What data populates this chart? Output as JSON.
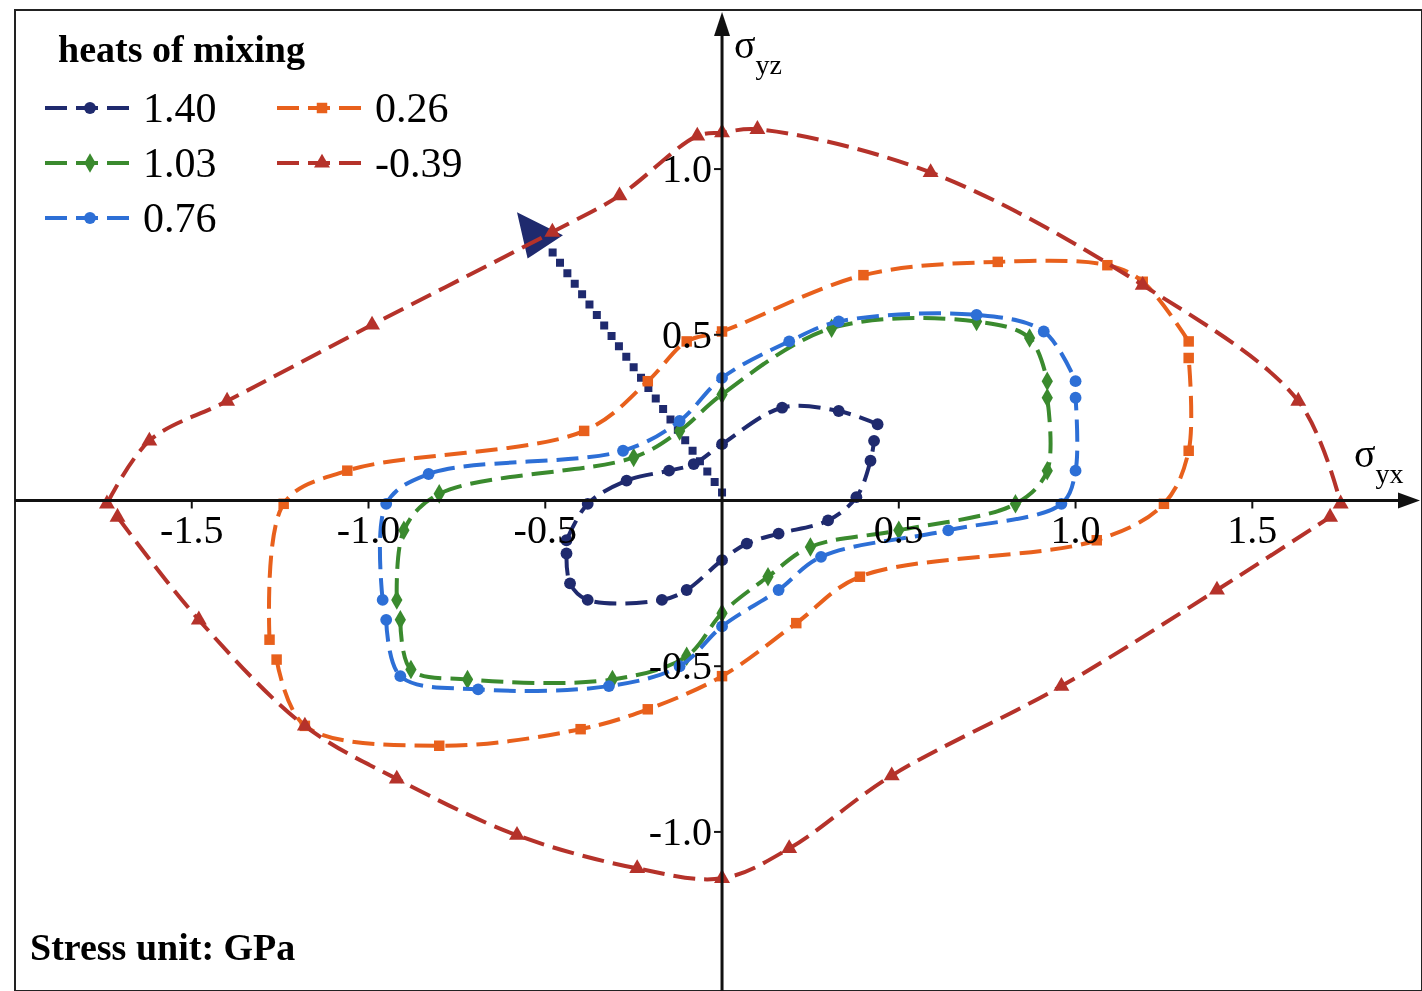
{
  "chart_data": {
    "type": "line",
    "xlabel": "σ$_{yx}$",
    "ylabel": "σ$_{yz}$",
    "legend_title": "heats of mixing",
    "legend": "top left",
    "line_style": "dashed",
    "xlim": [
      -2.0,
      1.98
    ],
    "ylim": [
      -1.48,
      1.48
    ],
    "xticks": [
      {
        "value": -1.5,
        "label": "-1.5"
      },
      {
        "value": -1,
        "label": "-1.0"
      },
      {
        "value": -0.5,
        "label": "-0.5"
      },
      {
        "value": 0.5,
        "label": "0.5"
      },
      {
        "value": 1,
        "label": "1.0"
      },
      {
        "value": 1.5,
        "label": "1.5"
      }
    ],
    "yticks": [
      {
        "value": 1,
        "label": "1.0"
      },
      {
        "value": 0.5,
        "label": "0.5"
      },
      {
        "value": -0.5,
        "label": "-0.5"
      },
      {
        "value": -1,
        "label": "-1.0"
      }
    ],
    "annotations": [
      "Stress unit: GPa"
    ],
    "series": [
      {
        "name": "1.40",
        "color": "#1f2a6e",
        "marker": "circle",
        "x": [
          -0.44,
          -0.38,
          -0.27,
          -0.15,
          -0.08,
          0,
          0.17,
          0.33,
          0.44
        ],
        "values": [
          -0.12,
          -0.01,
          0.06,
          0.09,
          0.11,
          0.17,
          0.28,
          0.27,
          0.23
        ]
      },
      {
        "color": "#1f2a6e",
        "marker": "circle",
        "x": [
          -0.44,
          -0.43,
          -0.38,
          -0.17,
          -0.1,
          0,
          0.07,
          0.16,
          0.3,
          0.38,
          0.42,
          0.43
        ],
        "values": [
          -0.16,
          -0.25,
          -0.3,
          -0.3,
          -0.27,
          -0.18,
          -0.13,
          -0.1,
          -0.06,
          0.01,
          0.12,
          0.18
        ]
      },
      {
        "name": "1.03",
        "color": "#3a8a2e",
        "marker": "diamond",
        "x": [
          -0.92,
          -0.9,
          -0.8,
          -0.25,
          -0.12,
          0,
          0.31,
          0.72,
          0.87,
          0.92
        ],
        "values": [
          -0.3,
          -0.09,
          0.02,
          0.13,
          0.21,
          0.32,
          0.52,
          0.54,
          0.49,
          0.36
        ]
      },
      {
        "color": "#3a8a2e",
        "marker": "diamond",
        "x": [
          -0.91,
          -0.88,
          -0.72,
          -0.31,
          -0.1,
          0,
          0.13,
          0.25,
          0.5,
          0.83,
          0.92,
          0.92
        ],
        "values": [
          -0.36,
          -0.51,
          -0.54,
          -0.54,
          -0.47,
          -0.34,
          -0.23,
          -0.14,
          -0.09,
          -0.01,
          0.09,
          0.31
        ]
      },
      {
        "name": "0.76",
        "color": "#2d6fd6",
        "marker": "circle",
        "x": [
          -0.96,
          -0.95,
          -0.83,
          -0.28,
          -0.12,
          0,
          0.19,
          0.33,
          0.72,
          0.91,
          1.0
        ],
        "values": [
          -0.3,
          -0.01,
          0.08,
          0.15,
          0.24,
          0.37,
          0.48,
          0.54,
          0.56,
          0.51,
          0.36
        ]
      },
      {
        "color": "#2d6fd6",
        "marker": "circle",
        "x": [
          -0.95,
          -0.91,
          -0.69,
          -0.32,
          -0.12,
          0,
          0.16,
          0.28,
          0.64,
          0.96,
          1.0,
          1.0
        ],
        "values": [
          -0.36,
          -0.53,
          -0.57,
          -0.56,
          -0.5,
          -0.38,
          -0.27,
          -0.17,
          -0.09,
          -0.01,
          0.09,
          0.31
        ]
      },
      {
        "name": "0.26",
        "color": "#e8601c",
        "marker": "square",
        "x": [
          -1.28,
          -1.24,
          -1.06,
          -0.39,
          -0.21,
          -0.1,
          0,
          0.4,
          0.78,
          1.09,
          1.19,
          1.32
        ],
        "values": [
          -0.42,
          -0.01,
          0.09,
          0.21,
          0.36,
          0.48,
          0.51,
          0.68,
          0.72,
          0.71,
          0.66,
          0.48
        ]
      },
      {
        "color": "#e8601c",
        "marker": "square",
        "x": [
          -1.26,
          -1.18,
          -0.8,
          -0.4,
          -0.21,
          0,
          0.21,
          0.39,
          1.06,
          1.25,
          1.32,
          1.32
        ],
        "values": [
          -0.48,
          -0.68,
          -0.74,
          -0.69,
          -0.63,
          -0.53,
          -0.37,
          -0.23,
          -0.12,
          -0.01,
          0.15,
          0.43
        ]
      },
      {
        "name": "-0.39",
        "color": "#b5322a",
        "marker": "triangle",
        "x": [
          -1.74,
          -1.62,
          -1.4,
          -0.99,
          -0.48,
          -0.29,
          -0.07,
          0,
          0.1,
          0.59,
          1.19,
          1.63,
          1.75
        ],
        "values": [
          -0.01,
          0.18,
          0.3,
          0.53,
          0.81,
          0.92,
          1.1,
          1.11,
          1.12,
          0.99,
          0.65,
          0.3,
          -0.01
        ]
      },
      {
        "color": "#b5322a",
        "marker": "triangle",
        "x": [
          -1.71,
          -1.48,
          -1.18,
          -0.92,
          -0.58,
          -0.24,
          0,
          0.19,
          0.48,
          0.96,
          1.4,
          1.72
        ],
        "values": [
          -0.05,
          -0.36,
          -0.68,
          -0.84,
          -1.01,
          -1.11,
          -1.14,
          -1.05,
          -0.83,
          -0.56,
          -0.27,
          -0.05
        ]
      }
    ]
  }
}
